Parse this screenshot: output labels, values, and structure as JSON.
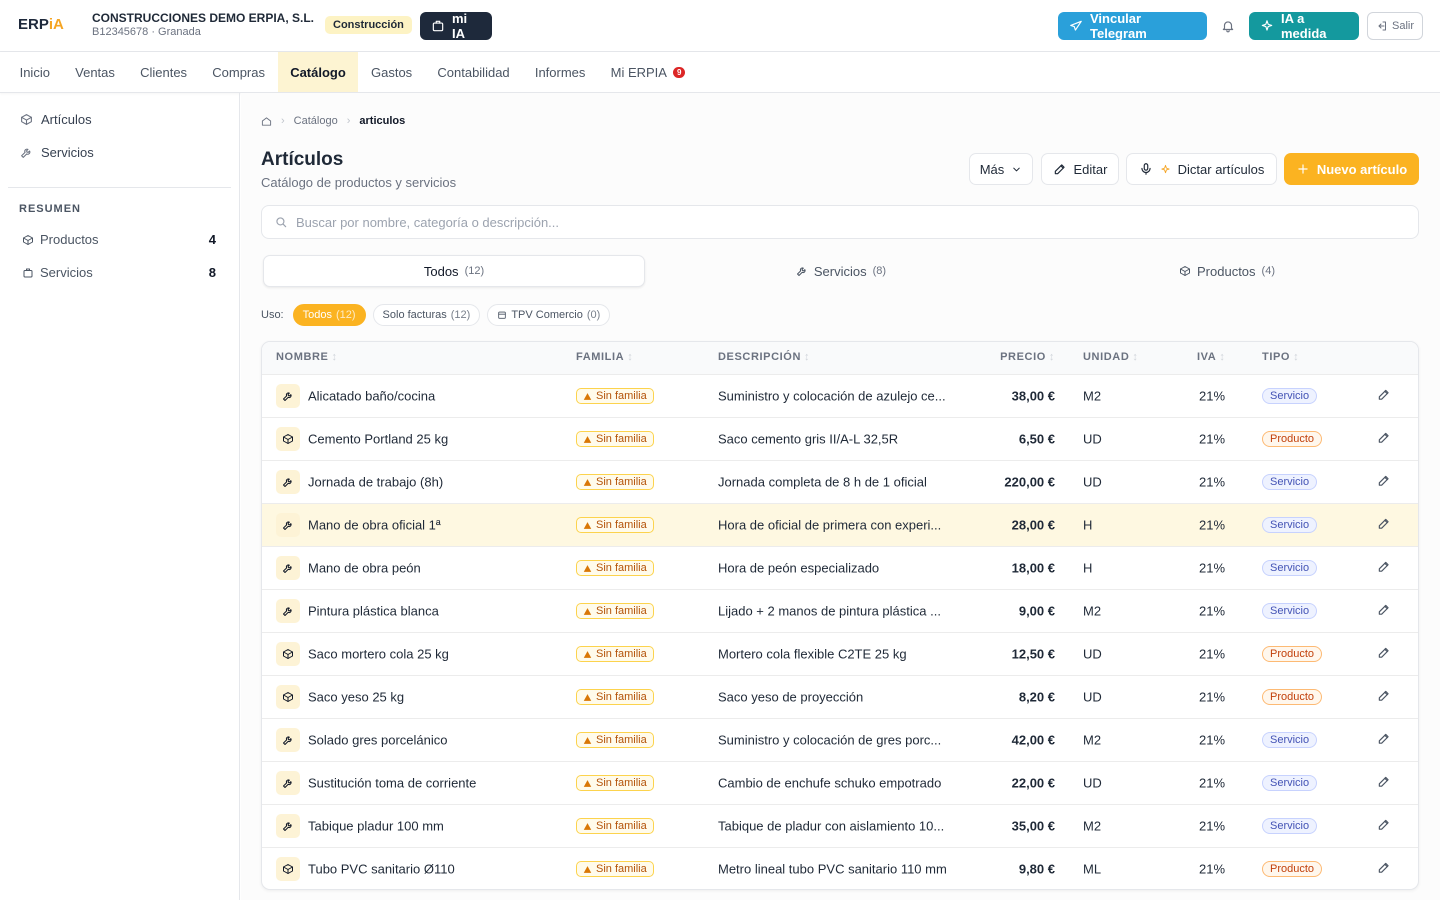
{
  "header": {
    "logo_main": "ERP",
    "logo_accent": "iA",
    "company": "CONSTRUCCIONES DEMO ERPIA, S.L.",
    "company_sub": "B12345678 · Granada",
    "sector": "Construcción",
    "mi_ia": "mi IA",
    "telegram": "Vincular Telegram",
    "ia_medida": "IA a medida",
    "logout": "Salir"
  },
  "nav": {
    "items": [
      "Inicio",
      "Ventas",
      "Clientes",
      "Compras",
      "Catálogo",
      "Gastos",
      "Contabilidad",
      "Informes",
      "Mi ERPIA"
    ],
    "active": 4,
    "badge": "9"
  },
  "sidebar": {
    "items": [
      "Artículos",
      "Servicios"
    ],
    "summary_title": "RESUMEN",
    "summary": [
      {
        "label": "Productos",
        "count": 4
      },
      {
        "label": "Servicios",
        "count": 8
      }
    ]
  },
  "breadcrumb": [
    "Catálogo",
    "articulos"
  ],
  "page": {
    "title": "Artículos",
    "subtitle": "Catálogo de productos y servicios",
    "buttons": [
      "Más",
      "Editar",
      "Dictar artículos",
      "Nuevo artículo"
    ],
    "search_placeholder": "Buscar por nombre, categoría o descripción..."
  },
  "tabs": [
    {
      "label": "Todos",
      "count": "(12)"
    },
    {
      "label": "Servicios",
      "count": "(8)"
    },
    {
      "label": "Productos",
      "count": "(4)"
    }
  ],
  "filter": {
    "label": "Uso:",
    "chips": [
      {
        "label": "Todos",
        "count": "(12)"
      },
      {
        "label": "Solo facturas",
        "count": "(12)"
      },
      {
        "label": "TPV Comercio",
        "count": "(0)"
      }
    ]
  },
  "table": {
    "columns": [
      "NOMBRE",
      "FAMILIA",
      "DESCRIPCIÓN",
      "PRECIO",
      "UNIDAD",
      "IVA",
      "TIPO"
    ],
    "highlighted_row": 3,
    "rows": [
      [
        "Alicatado baño/cocina",
        "Sin familia",
        "Suministro y colocación de azulejo ce...",
        "38,00 €",
        "M2",
        "21%",
        "Servicio"
      ],
      [
        "Cemento Portland 25 kg",
        "Sin familia",
        "Saco cemento gris II/A-L 32,5R",
        "6,50 €",
        "UD",
        "21%",
        "Producto"
      ],
      [
        "Jornada de trabajo (8h)",
        "Sin familia",
        "Jornada completa de 8 h de 1 oficial",
        "220,00 €",
        "UD",
        "21%",
        "Servicio"
      ],
      [
        "Mano de obra oficial 1ª",
        "Sin familia",
        "Hora de oficial de primera con experi...",
        "28,00 €",
        "H",
        "21%",
        "Servicio"
      ],
      [
        "Mano de obra peón",
        "Sin familia",
        "Hora de peón especializado",
        "18,00 €",
        "H",
        "21%",
        "Servicio"
      ],
      [
        "Pintura plástica blanca",
        "Sin familia",
        "Lijado + 2 manos de pintura plástica ...",
        "9,00 €",
        "M2",
        "21%",
        "Servicio"
      ],
      [
        "Saco mortero cola 25 kg",
        "Sin familia",
        "Mortero cola flexible C2TE 25 kg",
        "12,50 €",
        "UD",
        "21%",
        "Producto"
      ],
      [
        "Saco yeso 25 kg",
        "Sin familia",
        "Saco yeso de proyección",
        "8,20 €",
        "UD",
        "21%",
        "Producto"
      ],
      [
        "Solado gres porcelánico",
        "Sin familia",
        "Suministro y colocación de gres porc...",
        "42,00 €",
        "M2",
        "21%",
        "Servicio"
      ],
      [
        "Sustitución toma de corriente",
        "Sin familia",
        "Cambio de enchufe schuko empotrado",
        "22,00 €",
        "UD",
        "21%",
        "Servicio"
      ],
      [
        "Tabique pladur 100 mm",
        "Sin familia",
        "Tabique de pladur con aislamiento 10...",
        "35,00 €",
        "M2",
        "21%",
        "Servicio"
      ],
      [
        "Tubo PVC sanitario Ø110",
        "Sin familia",
        "Metro lineal tubo PVC sanitario 110 mm",
        "9,80 €",
        "ML",
        "21%",
        "Producto"
      ]
    ]
  }
}
